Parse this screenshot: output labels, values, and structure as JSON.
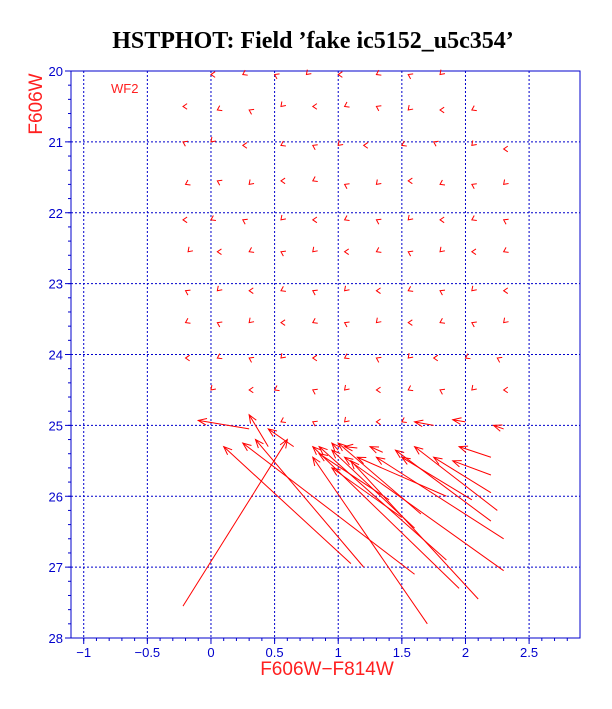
{
  "chart_data": {
    "type": "quiver",
    "title": "HSTPHOT: Field ’fake ic5152_u5c354’",
    "xlabel": "F606W−F814W",
    "ylabel": "F606W",
    "panel_label": "WF2",
    "xlim": [
      -1.1,
      2.9
    ],
    "ylim": [
      28,
      20
    ],
    "y_inverted": true,
    "grid": true,
    "x_ticks": [
      -1,
      -0.5,
      0,
      0.5,
      1,
      1.5,
      2,
      2.5
    ],
    "x_ticklabels": [
      "−1",
      "−0.5",
      "0",
      "0.5",
      "1",
      "1.5",
      "2",
      "2.5"
    ],
    "y_ticks": [
      20,
      21,
      22,
      23,
      24,
      25,
      26,
      27,
      28
    ],
    "y_ticklabels": [
      "20",
      "21",
      "22",
      "23",
      "24",
      "25",
      "26",
      "27",
      "28"
    ],
    "colors": {
      "arrows": "#ff0000",
      "axes": "#0000cc",
      "labels": "#ff2020",
      "title": "#000000"
    },
    "arrows": [
      {
        "x1": -0.22,
        "y1": 27.55,
        "x2": 0.6,
        "y2": 25.2
      },
      {
        "x1": 0.3,
        "y1": 25.05,
        "x2": -0.1,
        "y2": 24.93
      },
      {
        "x1": 1.2,
        "y1": 27.0,
        "x2": 0.35,
        "y2": 25.2
      },
      {
        "x1": 1.6,
        "y1": 27.1,
        "x2": 0.25,
        "y2": 25.25
      },
      {
        "x1": 1.7,
        "y1": 27.8,
        "x2": 0.8,
        "y2": 25.45
      },
      {
        "x1": 1.1,
        "y1": 26.95,
        "x2": 0.1,
        "y2": 25.3
      },
      {
        "x1": 1.95,
        "y1": 27.3,
        "x2": 0.8,
        "y2": 25.3
      },
      {
        "x1": 2.1,
        "y1": 27.45,
        "x2": 1.1,
        "y2": 25.5
      },
      {
        "x1": 2.3,
        "y1": 27.05,
        "x2": 1.05,
        "y2": 25.45
      },
      {
        "x1": 1.85,
        "y1": 26.9,
        "x2": 0.85,
        "y2": 25.3
      },
      {
        "x1": 2.3,
        "y1": 26.6,
        "x2": 1.3,
        "y2": 25.45
      },
      {
        "x1": 2.2,
        "y1": 26.35,
        "x2": 1.45,
        "y2": 25.35
      },
      {
        "x1": 2.25,
        "y1": 26.2,
        "x2": 1.6,
        "y2": 25.3
      },
      {
        "x1": 1.6,
        "y1": 26.45,
        "x2": 0.95,
        "y2": 25.35
      },
      {
        "x1": 1.65,
        "y1": 26.25,
        "x2": 1.0,
        "y2": 25.25
      },
      {
        "x1": 1.5,
        "y1": 26.3,
        "x2": 0.95,
        "y2": 25.6
      },
      {
        "x1": 1.4,
        "y1": 26.05,
        "x2": 0.85,
        "y2": 25.4
      },
      {
        "x1": 1.85,
        "y1": 26.0,
        "x2": 1.15,
        "y2": 25.45
      },
      {
        "x1": 2.05,
        "y1": 26.05,
        "x2": 1.5,
        "y2": 25.45
      },
      {
        "x1": 2.2,
        "y1": 25.95,
        "x2": 1.75,
        "y2": 25.45
      },
      {
        "x1": 2.2,
        "y1": 25.7,
        "x2": 1.9,
        "y2": 25.5
      },
      {
        "x1": 2.2,
        "y1": 25.45,
        "x2": 1.95,
        "y2": 25.3
      },
      {
        "x1": 0.45,
        "y1": 25.3,
        "x2": 0.3,
        "y2": 24.85
      },
      {
        "x1": 0.65,
        "y1": 25.3,
        "x2": 0.45,
        "y2": 25.05
      },
      {
        "x1": 1.0,
        "y1": 25.35,
        "x2": 0.95,
        "y2": 25.25
      },
      {
        "x1": 1.15,
        "y1": 25.32,
        "x2": 1.05,
        "y2": 25.3
      },
      {
        "x1": 1.35,
        "y1": 25.38,
        "x2": 1.25,
        "y2": 25.3
      },
      {
        "x1": 2.3,
        "y1": 25.05,
        "x2": 2.22,
        "y2": 25.0
      },
      {
        "x1": 1.75,
        "y1": 25.0,
        "x2": 1.6,
        "y2": 24.95
      },
      {
        "x1": 2.0,
        "y1": 24.95,
        "x2": 1.9,
        "y2": 24.92
      }
    ],
    "small_markers": [
      [
        0.0,
        20.05
      ],
      [
        0.25,
        20.05
      ],
      [
        0.5,
        20.05
      ],
      [
        0.75,
        20.05
      ],
      [
        1.0,
        20.05
      ],
      [
        1.3,
        20.05
      ],
      [
        1.55,
        20.05
      ],
      [
        1.8,
        20.05
      ],
      [
        -0.22,
        20.5
      ],
      [
        0.05,
        20.55
      ],
      [
        0.3,
        20.55
      ],
      [
        0.55,
        20.5
      ],
      [
        0.8,
        20.5
      ],
      [
        1.05,
        20.5
      ],
      [
        1.3,
        20.5
      ],
      [
        1.55,
        20.55
      ],
      [
        1.8,
        20.55
      ],
      [
        2.05,
        20.55
      ],
      [
        -0.22,
        21.0
      ],
      [
        0.0,
        21.0
      ],
      [
        0.25,
        21.05
      ],
      [
        0.55,
        21.05
      ],
      [
        0.8,
        21.05
      ],
      [
        1.0,
        21.05
      ],
      [
        1.2,
        21.05
      ],
      [
        1.5,
        21.05
      ],
      [
        1.75,
        21.0
      ],
      [
        2.05,
        21.05
      ],
      [
        2.3,
        21.1
      ],
      [
        -0.2,
        21.6
      ],
      [
        0.05,
        21.55
      ],
      [
        0.3,
        21.6
      ],
      [
        0.55,
        21.55
      ],
      [
        0.8,
        21.55
      ],
      [
        1.05,
        21.6
      ],
      [
        1.3,
        21.6
      ],
      [
        1.55,
        21.55
      ],
      [
        1.8,
        21.6
      ],
      [
        2.05,
        21.6
      ],
      [
        2.3,
        21.6
      ],
      [
        -0.22,
        22.1
      ],
      [
        0.0,
        22.1
      ],
      [
        0.25,
        22.1
      ],
      [
        0.55,
        22.1
      ],
      [
        0.8,
        22.1
      ],
      [
        1.05,
        22.1
      ],
      [
        1.3,
        22.1
      ],
      [
        1.55,
        22.1
      ],
      [
        1.8,
        22.1
      ],
      [
        2.05,
        22.1
      ],
      [
        2.3,
        22.1
      ],
      [
        -0.18,
        22.55
      ],
      [
        0.05,
        22.55
      ],
      [
        0.3,
        22.55
      ],
      [
        0.55,
        22.55
      ],
      [
        0.8,
        22.55
      ],
      [
        1.05,
        22.55
      ],
      [
        1.3,
        22.55
      ],
      [
        1.55,
        22.55
      ],
      [
        1.8,
        22.55
      ],
      [
        2.05,
        22.55
      ],
      [
        2.3,
        22.55
      ],
      [
        -0.2,
        23.1
      ],
      [
        0.05,
        23.1
      ],
      [
        0.3,
        23.1
      ],
      [
        0.55,
        23.1
      ],
      [
        0.8,
        23.1
      ],
      [
        1.05,
        23.1
      ],
      [
        1.3,
        23.1
      ],
      [
        1.55,
        23.1
      ],
      [
        1.8,
        23.1
      ],
      [
        2.05,
        23.1
      ],
      [
        2.3,
        23.1
      ],
      [
        -0.2,
        23.55
      ],
      [
        0.05,
        23.55
      ],
      [
        0.3,
        23.55
      ],
      [
        0.55,
        23.55
      ],
      [
        0.8,
        23.55
      ],
      [
        1.05,
        23.55
      ],
      [
        1.3,
        23.55
      ],
      [
        1.55,
        23.55
      ],
      [
        1.8,
        23.55
      ],
      [
        2.05,
        23.55
      ],
      [
        2.3,
        23.55
      ],
      [
        -0.2,
        24.05
      ],
      [
        0.05,
        24.05
      ],
      [
        0.3,
        24.05
      ],
      [
        0.55,
        24.05
      ],
      [
        0.8,
        24.05
      ],
      [
        1.05,
        24.05
      ],
      [
        1.3,
        24.05
      ],
      [
        1.55,
        24.05
      ],
      [
        1.75,
        24.05
      ],
      [
        2.0,
        24.05
      ],
      [
        2.25,
        24.05
      ],
      [
        0.0,
        24.5
      ],
      [
        0.3,
        24.5
      ],
      [
        0.5,
        24.5
      ],
      [
        0.8,
        24.5
      ],
      [
        1.05,
        24.5
      ],
      [
        1.3,
        24.5
      ],
      [
        1.55,
        24.5
      ],
      [
        1.8,
        24.5
      ],
      [
        2.05,
        24.5
      ],
      [
        2.3,
        24.5
      ],
      [
        0.55,
        24.95
      ],
      [
        0.8,
        24.95
      ],
      [
        1.05,
        24.95
      ],
      [
        1.3,
        24.95
      ],
      [
        1.5,
        24.95
      ]
    ]
  }
}
